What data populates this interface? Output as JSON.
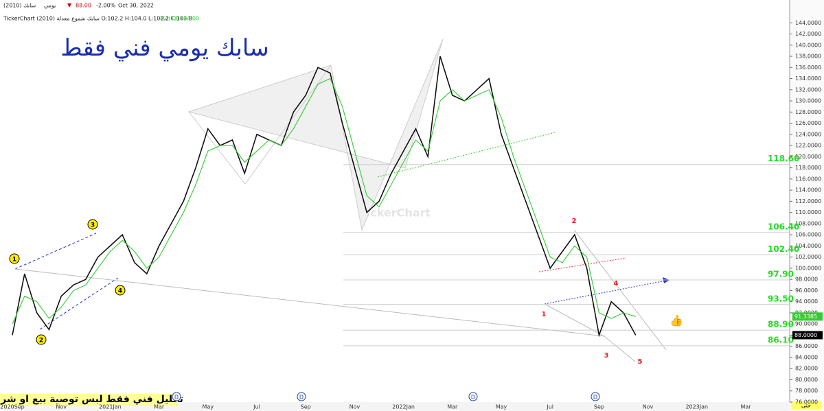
{
  "chart_data": {
    "type": "line",
    "title": "سابك يومي فني فقط",
    "header": {
      "symbol": "سابك (2010)",
      "period": "يومي",
      "price": "88.00",
      "change": "-2.00%",
      "date": "Oct 30, 2022",
      "info": "TickerChart سابك شموع معدلة (2010) O:102.2 H:104.0 L:102.2 C:103.8",
      "ma_value": "104.00"
    },
    "categories": [
      "2020Sep",
      null,
      null,
      null,
      "Nov",
      null,
      null,
      null,
      "2021Jan",
      null,
      null,
      null,
      "Mar",
      null,
      null,
      null,
      "May",
      null,
      null,
      null,
      "Jul",
      null,
      null,
      null,
      "Sep",
      null,
      null,
      null,
      "Nov",
      null,
      null,
      null,
      "2022Jan",
      null,
      null,
      null,
      "Mar",
      null,
      null,
      null,
      "May",
      null,
      null,
      null,
      "Jul",
      null,
      null,
      null,
      "Sep",
      null,
      null,
      null,
      "Nov",
      null,
      null,
      null,
      "2023Jan",
      null,
      null,
      null,
      "Mar"
    ],
    "series": [
      {
        "name": "سابك",
        "color": "#111111",
        "values": [
          88,
          99,
          92,
          89,
          95,
          97,
          98,
          102,
          104,
          106,
          101,
          99,
          104,
          108,
          112,
          118,
          125,
          122,
          123,
          117,
          124,
          123,
          122,
          128,
          131,
          136,
          135,
          126,
          118,
          110,
          112,
          117,
          121,
          125,
          120,
          138,
          131,
          130,
          132,
          134,
          124,
          118,
          112,
          106,
          100,
          103,
          106,
          100,
          88,
          94,
          92,
          88,
          null,
          null,
          null,
          null,
          null,
          null,
          null,
          null,
          null
        ]
      },
      {
        "name": "MA(13)",
        "color": "#33cc33",
        "values": [
          90,
          95,
          94,
          91,
          93,
          96,
          97,
          100,
          103,
          105,
          103,
          100,
          102,
          106,
          110,
          115,
          121,
          122,
          122,
          119,
          121,
          123,
          122,
          125,
          129,
          133,
          134,
          129,
          121,
          113,
          111,
          115,
          119,
          123,
          121,
          130,
          132,
          130,
          131,
          132,
          127,
          120,
          114,
          108,
          102,
          101,
          104,
          102,
          92,
          91,
          92,
          91.3385,
          null,
          null,
          null,
          null,
          null,
          null,
          null,
          null,
          null
        ]
      }
    ],
    "ylim": [
      76,
      146
    ],
    "yticks": [
      {
        "value": 76,
        "label": "76.0000"
      },
      {
        "value": 78,
        "label": "78.0000"
      },
      {
        "value": 80,
        "label": "80.0000"
      },
      {
        "value": 82,
        "label": "82.0000"
      },
      {
        "value": 84,
        "label": "84.0000"
      },
      {
        "value": 86,
        "label": "86.0000"
      },
      {
        "value": 88,
        "label": "88.0000"
      },
      {
        "value": 90,
        "label": "90.0000"
      },
      {
        "value": 92,
        "label": "92.0000"
      },
      {
        "value": 94,
        "label": "94.0000"
      },
      {
        "value": 96,
        "label": "96.0000"
      },
      {
        "value": 98,
        "label": "98.0000"
      },
      {
        "value": 100,
        "label": "100.0000"
      },
      {
        "value": 102,
        "label": "102.0000"
      },
      {
        "value": 104,
        "label": "104.0000"
      },
      {
        "value": 106,
        "label": "106.0000"
      },
      {
        "value": 108,
        "label": "108.0000"
      },
      {
        "value": 110,
        "label": "110.0000"
      },
      {
        "value": 112,
        "label": "112.0000"
      },
      {
        "value": 114,
        "label": "114.0000"
      },
      {
        "value": 116,
        "label": "116.0000"
      },
      {
        "value": 118,
        "label": "118.0000"
      },
      {
        "value": 120,
        "label": "120.0000"
      },
      {
        "value": 122,
        "label": "122.0000"
      },
      {
        "value": 124,
        "label": "124.0000"
      },
      {
        "value": 126,
        "label": "126.0000"
      },
      {
        "value": 128,
        "label": "128.0000"
      },
      {
        "value": 130,
        "label": "130.0000"
      },
      {
        "value": 132,
        "label": "132.0000"
      },
      {
        "value": 134,
        "label": "134.0000"
      },
      {
        "value": 136,
        "label": "136.0000"
      },
      {
        "value": 138,
        "label": "138.0000"
      },
      {
        "value": 140,
        "label": "140.0000"
      },
      {
        "value": 142,
        "label": "142.0000"
      },
      {
        "value": 144,
        "label": "144.0000"
      }
    ],
    "levels": [
      {
        "value": 118.6,
        "label": "118.60"
      },
      {
        "value": 106.4,
        "label": "106.40"
      },
      {
        "value": 102.4,
        "label": "102.40"
      },
      {
        "value": 97.9,
        "label": "97.90"
      },
      {
        "value": 93.5,
        "label": "93.50"
      },
      {
        "value": 88.9,
        "label": "88.90"
      },
      {
        "value": 86.1,
        "label": "86.10"
      }
    ],
    "last_price": {
      "value": 88,
      "label": "88.0000"
    },
    "ma_last": {
      "value": 91.3385,
      "label": "91.3385"
    },
    "wave_circled": [
      "1",
      "2",
      "3",
      "4"
    ],
    "wave_red": [
      "1",
      "2",
      "3",
      "4",
      "5"
    ],
    "events": [
      "D",
      "D",
      "D",
      "D"
    ],
    "watermark": "TickerChart",
    "disclaimer": "تحليل فني فقط  لبس توصية بيع او شراء",
    "corner": "حتى"
  }
}
